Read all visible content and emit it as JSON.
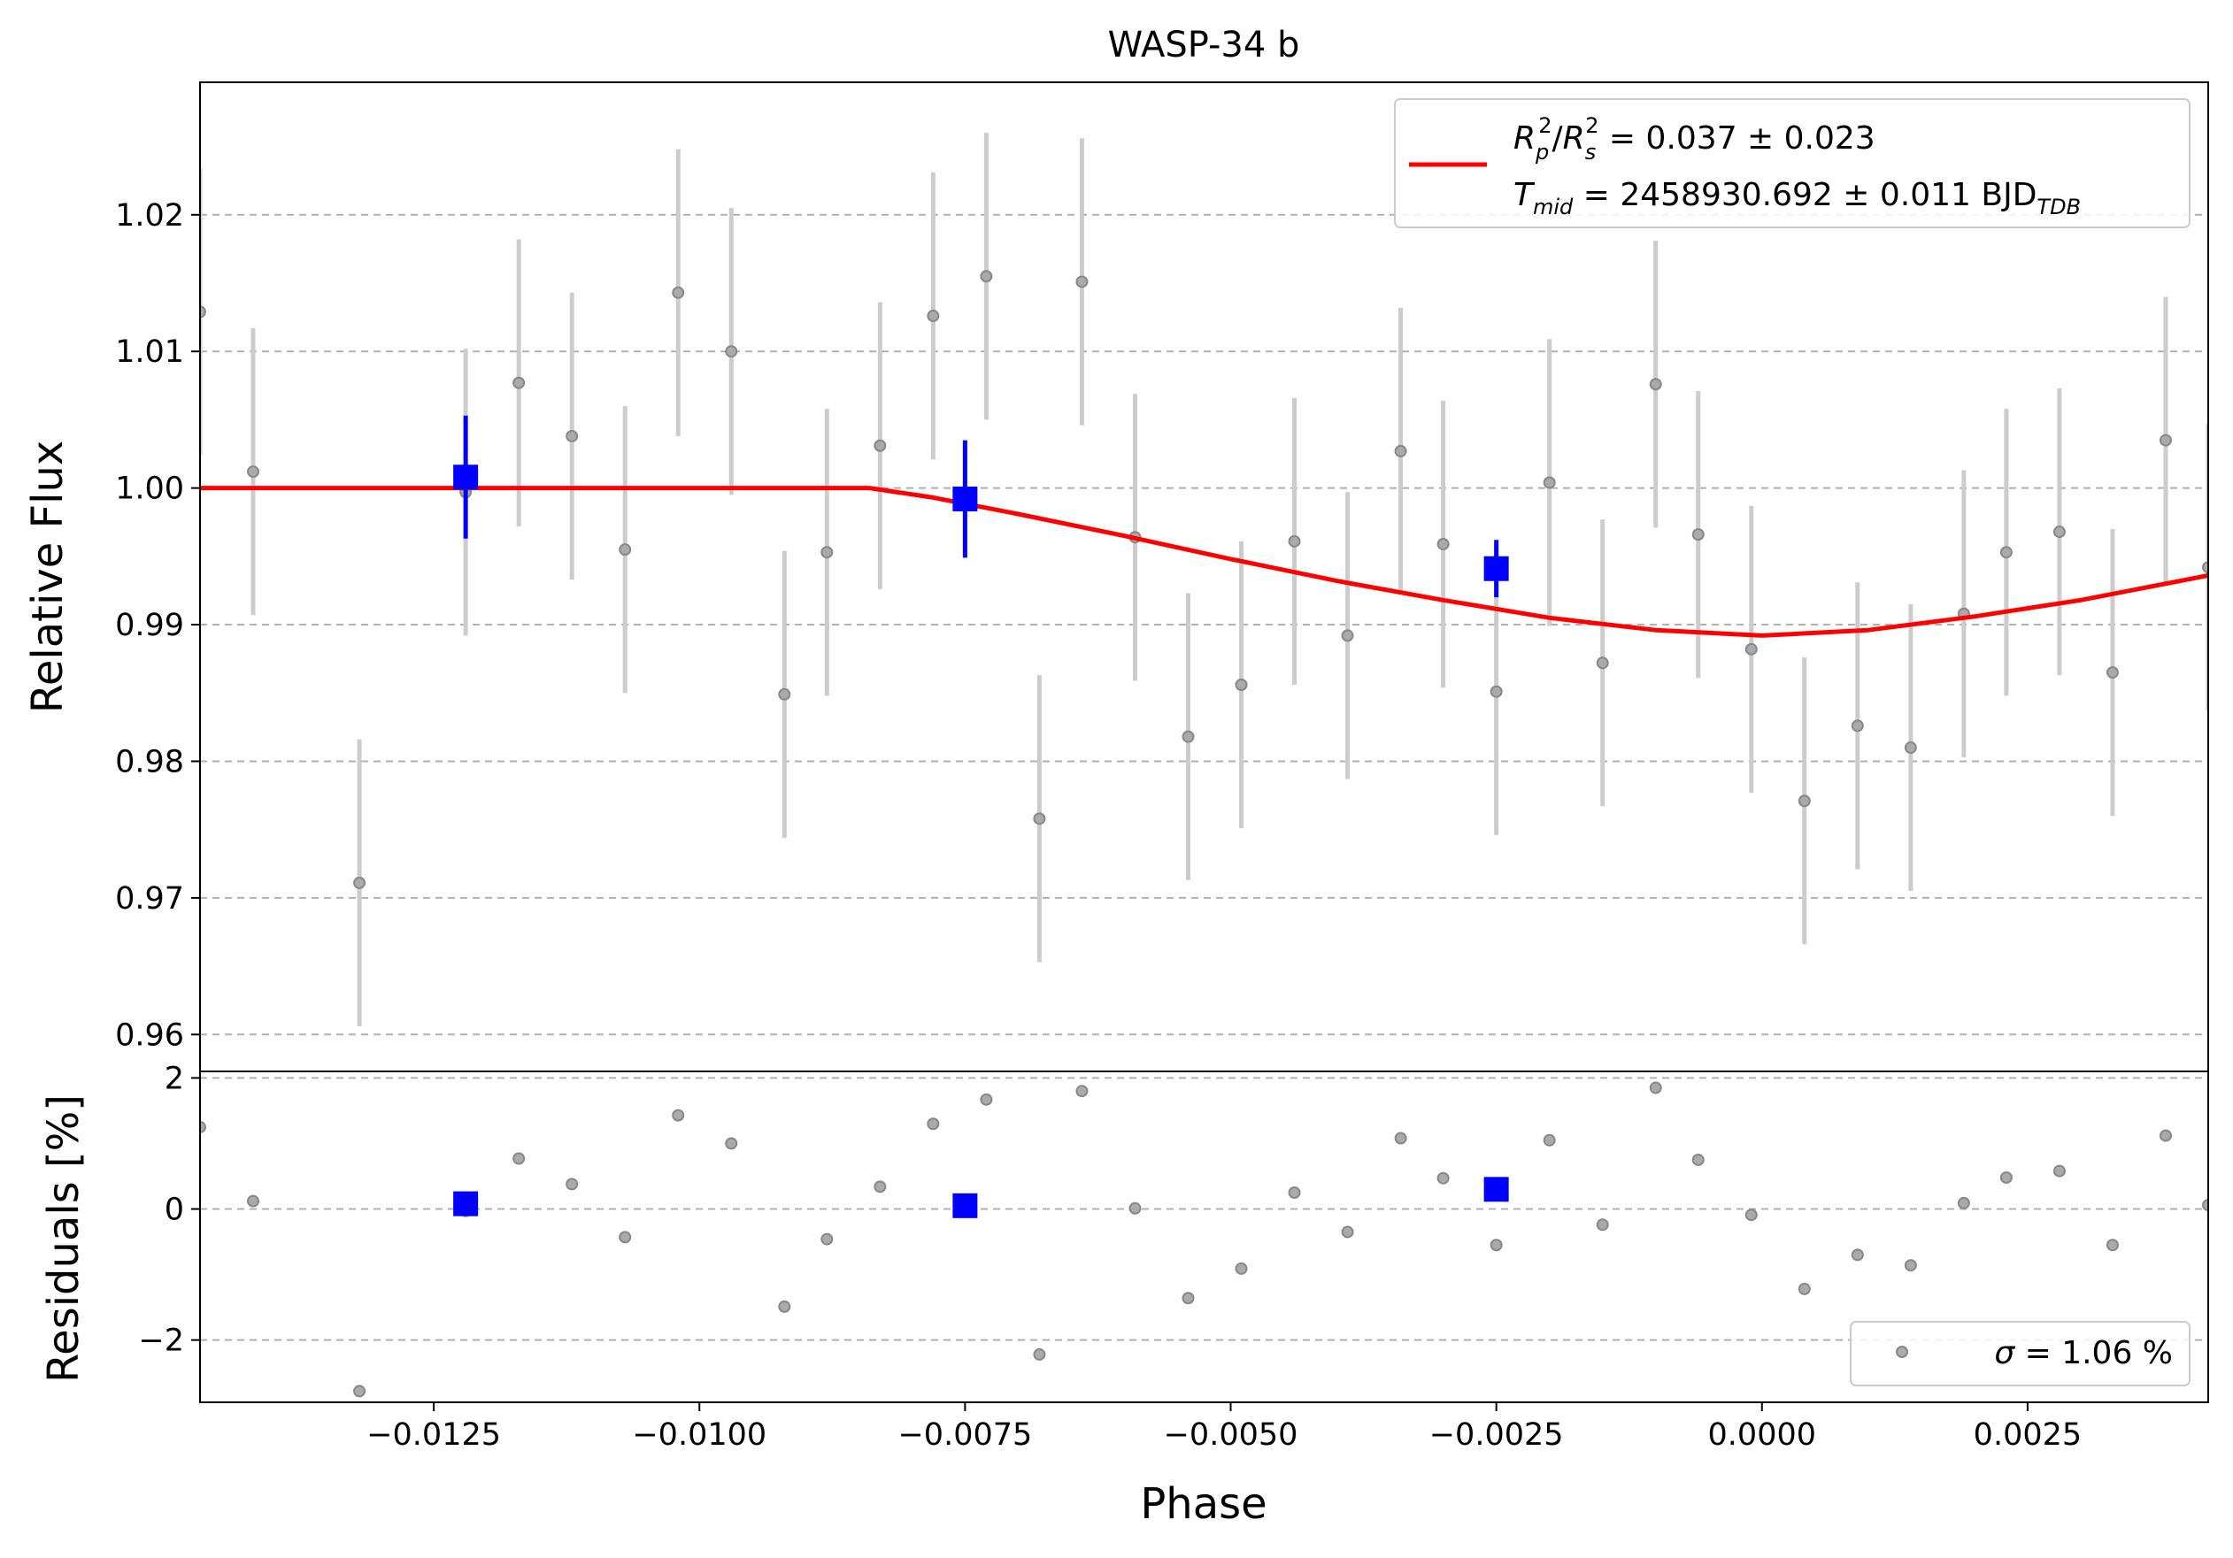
{
  "chart_data": [
    {
      "type": "scatter",
      "panel": "main",
      "title": "WASP-34 b",
      "xlabel": "",
      "ylabel": "Relative Flux",
      "xlim": [
        -0.0147,
        0.0042
      ],
      "ylim": [
        0.9573,
        1.0297
      ],
      "grid": "horizontal dashed",
      "yticks": [
        0.96,
        0.97,
        0.98,
        0.99,
        1.0,
        1.01,
        1.02
      ],
      "ytick_labels": [
        "0.96",
        "0.97",
        "0.98",
        "0.99",
        "1.00",
        "1.01",
        "1.02"
      ],
      "legend": {
        "placement": "top-right",
        "line1": {
          "a": "R",
          "a_sub": "p",
          "a_sup": "2",
          "slash": "/",
          "b": "R",
          "b_sub": "s",
          "b_sup": "2",
          "rest": " = 0.037 ± 0.023"
        },
        "line2": {
          "a": "T",
          "a_sub": "mid",
          "rest": " = 2458930.692 ± 0.011 BJD",
          "unit_sub": "TDB"
        }
      },
      "colors": {
        "data": "#9a9a9a",
        "errorbar": "#cccccc",
        "binned": "#0000ff",
        "model": "#ff0000",
        "grid": "#b0b0b0"
      },
      "series": [
        {
          "kind": "data",
          "x": [
            -0.0147,
            -0.0142,
            -0.0132,
            -0.0122,
            -0.0117,
            -0.0112,
            -0.0107,
            -0.0102,
            -0.0097,
            -0.0092,
            -0.0088,
            -0.0083,
            -0.0078,
            -0.0073,
            -0.0068,
            -0.0064,
            -0.0059,
            -0.0054,
            -0.0049,
            -0.0044,
            -0.0039,
            -0.0034,
            -0.003,
            -0.0025,
            -0.002,
            -0.0015,
            -0.001,
            -0.0006,
            -0.0001,
            0.0004,
            0.0009,
            0.0014,
            0.0019,
            0.0023,
            0.0028,
            0.0033,
            0.0038,
            0.0042
          ],
          "y": [
            1.0129,
            1.0012,
            0.9711,
            0.9997,
            1.0077,
            1.0038,
            0.9955,
            1.0143,
            1.01,
            0.9849,
            0.9953,
            1.0031,
            1.0126,
            1.0155,
            0.9758,
            1.0151,
            0.9964,
            0.9818,
            0.9856,
            0.9961,
            0.9892,
            1.0027,
            0.9959,
            0.9851,
            1.0004,
            0.9872,
            1.0076,
            0.9966,
            0.9882,
            0.9771,
            0.9826,
            0.981,
            0.9908,
            0.9953,
            0.9968,
            0.9865,
            1.0035,
            0.9942
          ],
          "yerr": [
            0.0105,
            0.0105,
            0.0105,
            0.0105,
            0.0105,
            0.0105,
            0.0105,
            0.0105,
            0.0105,
            0.0105,
            0.0105,
            0.0105,
            0.0105,
            0.0105,
            0.0105,
            0.0105,
            0.0105,
            0.0105,
            0.0105,
            0.0105,
            0.0105,
            0.0105,
            0.0105,
            0.0105,
            0.0105,
            0.0105,
            0.0105,
            0.0105,
            0.0105,
            0.0105,
            0.0105,
            0.0105,
            0.0105,
            0.0105,
            0.0105,
            0.0105,
            0.0105,
            0.0105
          ]
        },
        {
          "kind": "binned",
          "x": [
            -0.0122,
            -0.0075,
            -0.0025
          ],
          "y": [
            1.0008,
            0.9992,
            0.9941
          ],
          "yerr": [
            0.0045,
            0.0043,
            0.0021
          ]
        },
        {
          "kind": "model",
          "x": [
            -0.0147,
            -0.0084,
            -0.0078,
            -0.007,
            -0.006,
            -0.005,
            -0.004,
            -0.003,
            -0.002,
            -0.001,
            0.0,
            0.001,
            0.002,
            0.003,
            0.0042
          ],
          "y": [
            1.0,
            1.0,
            0.9993,
            0.9981,
            0.9965,
            0.9948,
            0.9932,
            0.9918,
            0.9905,
            0.9896,
            0.9892,
            0.9896,
            0.9906,
            0.9918,
            0.9936
          ]
        }
      ]
    },
    {
      "type": "scatter",
      "panel": "residuals",
      "xlabel": "Phase",
      "ylabel": "Residuals [%]",
      "xlim": [
        -0.0147,
        0.0042
      ],
      "ylim": [
        -2.95,
        2.1
      ],
      "grid": "horizontal dashed",
      "xticks": [
        -0.0125,
        -0.01,
        -0.0075,
        -0.005,
        -0.0025,
        0.0,
        0.0025
      ],
      "xtick_labels": [
        "−0.0125",
        "−0.0100",
        "−0.0075",
        "−0.0050",
        "−0.0025",
        "0.0000",
        "0.0025"
      ],
      "yticks": [
        -2,
        0,
        2
      ],
      "ytick_labels": [
        "−2",
        "0",
        "2"
      ],
      "legend": {
        "placement": "bottom-right",
        "symbol": "σ",
        "rest": " = 1.06 %"
      },
      "series": [
        {
          "kind": "data",
          "x": [
            -0.0147,
            -0.0142,
            -0.0132,
            -0.0122,
            -0.0117,
            -0.0112,
            -0.0107,
            -0.0102,
            -0.0097,
            -0.0092,
            -0.0088,
            -0.0083,
            -0.0078,
            -0.0073,
            -0.0068,
            -0.0064,
            -0.0059,
            -0.0054,
            -0.0049,
            -0.0044,
            -0.0039,
            -0.0034,
            -0.003,
            -0.0025,
            -0.002,
            -0.0015,
            -0.001,
            -0.0006,
            -0.0001,
            0.0004,
            0.0009,
            0.0014,
            0.0019,
            0.0023,
            0.0028,
            0.0033,
            0.0038,
            0.0042
          ],
          "y": [
            1.25,
            0.12,
            -2.78,
            -0.03,
            0.77,
            0.38,
            -0.43,
            1.43,
            1.0,
            -1.49,
            -0.46,
            0.34,
            1.3,
            1.67,
            -2.22,
            1.8,
            0.01,
            -1.36,
            -0.91,
            0.25,
            -0.35,
            1.08,
            0.47,
            -0.55,
            1.05,
            -0.24,
            1.85,
            0.75,
            -0.09,
            -1.22,
            -0.7,
            -0.86,
            0.09,
            0.48,
            0.58,
            -0.55,
            1.12,
            0.06
          ]
        },
        {
          "kind": "binned",
          "x": [
            -0.0122,
            -0.0075,
            -0.0025
          ],
          "y": [
            0.08,
            0.05,
            0.3
          ]
        }
      ]
    }
  ]
}
